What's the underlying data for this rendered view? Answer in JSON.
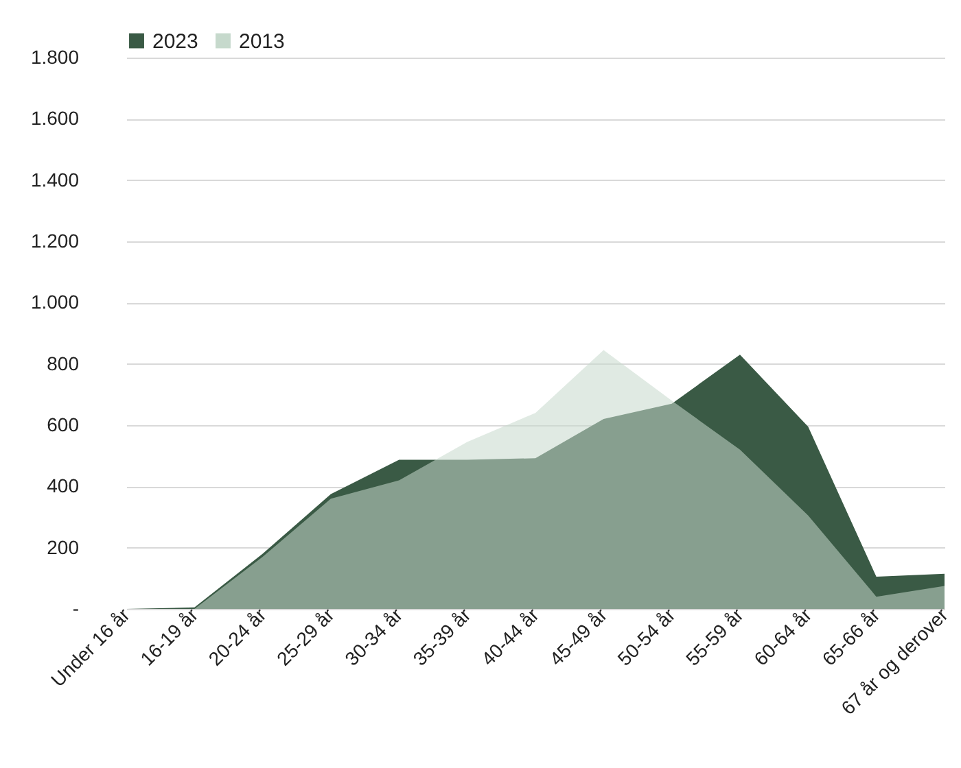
{
  "chart_data": {
    "type": "area",
    "categories": [
      "Under 16 år",
      "16-19 år",
      "20-24 år",
      "25-29 år",
      "30-34 år",
      "35-39 år",
      "40-44 år",
      "45-49 år",
      "50-54 år",
      "55-59 år",
      "60-64 år",
      "65-66 år",
      "67 år og derover"
    ],
    "series": [
      {
        "name": "2023",
        "color": "#3a5a45",
        "values": [
          0,
          5,
          180,
          375,
          487,
          487,
          492,
          620,
          670,
          830,
          595,
          105,
          115
        ]
      },
      {
        "name": "2013",
        "color": "#c6d9cc",
        "values": [
          0,
          0,
          170,
          360,
          420,
          545,
          640,
          845,
          680,
          520,
          305,
          40,
          75
        ]
      }
    ],
    "ylim": [
      0,
      1800
    ],
    "yticks": [
      {
        "value": 0,
        "label": "-"
      },
      200,
      400,
      600,
      800,
      {
        "value": 1000,
        "label": "1.000"
      },
      {
        "value": 1200,
        "label": "1.200"
      },
      {
        "value": 1400,
        "label": "1.400"
      },
      {
        "value": 1600,
        "label": "1.600"
      },
      {
        "value": 1800,
        "label": "1.800"
      }
    ],
    "grid": "y",
    "legend": "top"
  }
}
